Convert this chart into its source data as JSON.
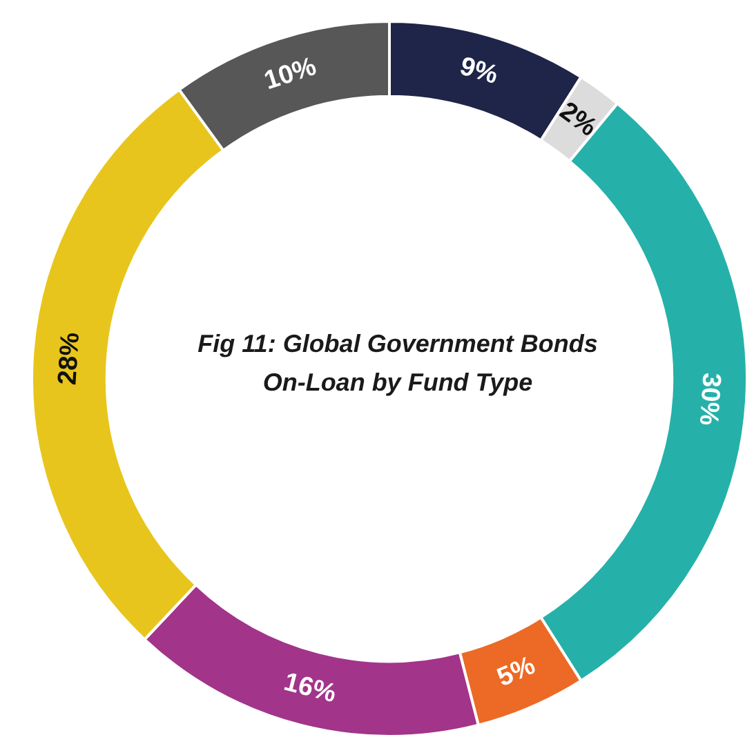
{
  "chart_data": {
    "type": "donut",
    "title": "Fig 11: Global Government Bonds On-Loan by Fund Type",
    "categories": [
      null,
      null,
      null,
      null,
      null,
      null,
      null
    ],
    "values": [
      9,
      2,
      30,
      5,
      16,
      28,
      10
    ],
    "colors": [
      "#1f2548",
      "#dcdcdc",
      "#25b1a9",
      "#ec6a25",
      "#a2348a",
      "#e8c51c",
      "#575757"
    ],
    "value_labels": [
      "9%",
      "2%",
      "30%",
      "5%",
      "16%",
      "28%",
      "10%"
    ],
    "legend": false
  }
}
